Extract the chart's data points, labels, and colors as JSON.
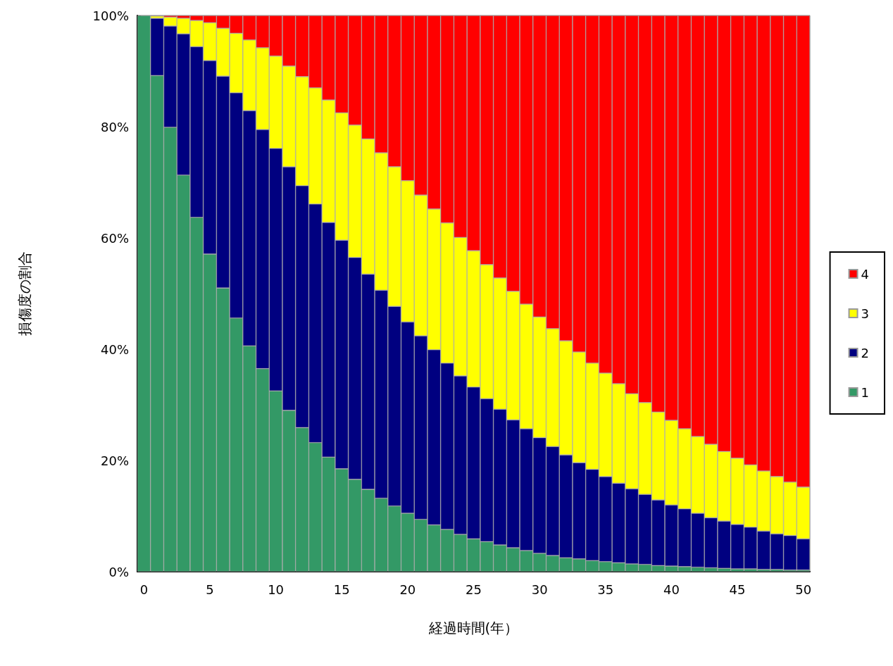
{
  "chart_data": {
    "type": "bar",
    "stacked": true,
    "xlabel": "経過時間(年）",
    "ylabel": "損傷度の割合",
    "categories": [
      "0",
      null,
      null,
      null,
      null,
      "5",
      null,
      null,
      null,
      null,
      "10",
      null,
      null,
      null,
      null,
      "15",
      null,
      null,
      null,
      null,
      "20",
      null,
      null,
      null,
      null,
      "25",
      null,
      null,
      null,
      null,
      "30",
      null,
      null,
      null,
      null,
      "35",
      null,
      null,
      null,
      null,
      "40",
      null,
      null,
      null,
      null,
      "45",
      null,
      null,
      null,
      null,
      "50"
    ],
    "ylim": [
      0,
      100
    ],
    "yticks": [
      {
        "value": 0,
        "label": "0%"
      },
      {
        "value": 20,
        "label": "20%"
      },
      {
        "value": 40,
        "label": "40%"
      },
      {
        "value": 60,
        "label": "60%"
      },
      {
        "value": 80,
        "label": "80%"
      },
      {
        "value": 100,
        "label": "100%"
      }
    ],
    "grid": false,
    "legend": "right",
    "series": [
      {
        "name": "1",
        "color": "#339966",
        "values": [
          100,
          89.2,
          79.9,
          71.3,
          63.7,
          57.1,
          51.0,
          45.6,
          40.6,
          36.5,
          32.5,
          29.0,
          25.9,
          23.2,
          20.6,
          18.5,
          16.6,
          14.8,
          13.2,
          11.8,
          10.5,
          9.4,
          8.4,
          7.6,
          6.7,
          5.9,
          5.4,
          4.8,
          4.3,
          3.8,
          3.3,
          2.9,
          2.5,
          2.3,
          2.0,
          1.8,
          1.6,
          1.4,
          1.3,
          1.1,
          1.0,
          0.9,
          0.8,
          0.7,
          0.6,
          0.5,
          0.5,
          0.4,
          0.4,
          0.3,
          0.3
        ]
      },
      {
        "name": "2",
        "color": "#000080",
        "values": [
          0,
          10.3,
          18.2,
          25.4,
          30.7,
          34.8,
          38.1,
          40.5,
          42.3,
          43.0,
          43.6,
          43.8,
          43.5,
          42.9,
          42.2,
          41.1,
          39.9,
          38.7,
          37.4,
          35.9,
          34.4,
          33.0,
          31.5,
          29.9,
          28.5,
          27.3,
          25.7,
          24.4,
          23.0,
          21.9,
          20.8,
          19.6,
          18.5,
          17.3,
          16.4,
          15.3,
          14.3,
          13.5,
          12.6,
          11.8,
          11.0,
          10.4,
          9.7,
          9.0,
          8.5,
          8.0,
          7.5,
          6.9,
          6.4,
          6.2,
          5.6
        ]
      },
      {
        "name": "3",
        "color": "#ffff00",
        "values": [
          0,
          0.4,
          1.6,
          2.8,
          4.7,
          6.8,
          8.6,
          10.7,
          12.7,
          14.7,
          16.6,
          18.1,
          19.6,
          20.9,
          22.0,
          22.9,
          23.8,
          24.3,
          24.7,
          25.1,
          25.4,
          25.3,
          25.3,
          25.2,
          24.9,
          24.5,
          24.1,
          23.6,
          23.1,
          22.4,
          21.7,
          21.2,
          20.5,
          19.9,
          19.1,
          18.6,
          17.9,
          17.1,
          16.5,
          15.8,
          15.2,
          14.4,
          13.8,
          13.2,
          12.5,
          11.9,
          11.2,
          10.8,
          10.3,
          9.6,
          9.3
        ]
      },
      {
        "name": "4",
        "color": "#ff0000",
        "values": [
          0,
          0.1,
          0.3,
          0.5,
          0.9,
          1.3,
          2.3,
          3.2,
          4.4,
          5.8,
          7.3,
          9.1,
          11.0,
          13.0,
          15.2,
          17.5,
          19.7,
          22.2,
          24.7,
          27.2,
          29.7,
          32.3,
          34.8,
          37.3,
          39.9,
          42.3,
          44.8,
          47.2,
          49.6,
          51.9,
          54.2,
          56.3,
          58.5,
          60.5,
          62.5,
          64.3,
          66.2,
          68.0,
          69.6,
          71.3,
          72.8,
          74.3,
          75.7,
          77.1,
          78.4,
          79.6,
          80.8,
          81.9,
          82.9,
          83.9,
          84.8
        ]
      }
    ]
  }
}
